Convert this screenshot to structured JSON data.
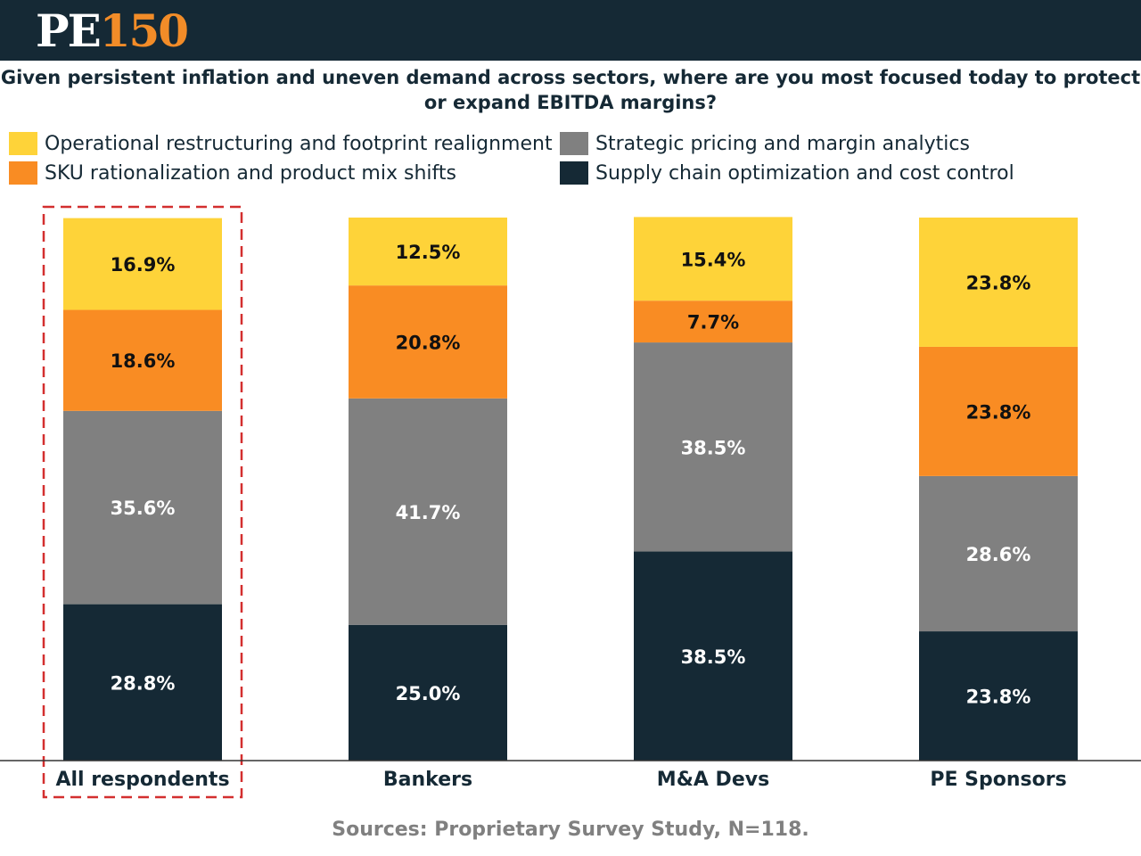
{
  "header": {
    "logo_pe": "PE",
    "logo_num": "150"
  },
  "colors": {
    "header_bg": "#152935",
    "highlight": "#d32f2f"
  },
  "chart_data": {
    "type": "bar",
    "stacked": true,
    "title": "Given persistent inflation and uneven demand across sectors, where are you most focused today to protect or expand EBITDA margins?",
    "categories": [
      "All respondents",
      "Bankers",
      "M&A Devs",
      "PE Sponsors"
    ],
    "series": [
      {
        "name": "Supply chain optimization and cost control",
        "color": "#152935",
        "label_color": "#ffffff",
        "values": [
          28.8,
          25.0,
          38.5,
          23.8
        ]
      },
      {
        "name": "Strategic pricing and margin analytics",
        "color": "#808080",
        "label_color": "#ffffff",
        "values": [
          35.6,
          41.7,
          38.5,
          28.6
        ]
      },
      {
        "name": "SKU rationalization and product mix shifts",
        "color": "#f98c23",
        "label_color": "#111111",
        "values": [
          18.6,
          20.8,
          7.7,
          23.8
        ]
      },
      {
        "name": "Operational restructuring and footprint realignment",
        "color": "#fed339",
        "label_color": "#111111",
        "values": [
          16.9,
          12.5,
          15.4,
          23.8
        ]
      }
    ],
    "value_suffix": "%",
    "highlighted_category": "All respondents",
    "ylim": [
      0,
      100
    ],
    "grid": false,
    "legend_position": "top"
  },
  "legend": [
    {
      "label": "Operational restructuring and footprint realignment",
      "color": "#fed339"
    },
    {
      "label": "Strategic pricing and margin analytics",
      "color": "#808080"
    },
    {
      "label": "SKU rationalization and product mix shifts",
      "color": "#f98c23"
    },
    {
      "label": "Supply chain optimization and cost control",
      "color": "#152935"
    }
  ],
  "source": "Sources: Proprietary Survey Study, N=118."
}
